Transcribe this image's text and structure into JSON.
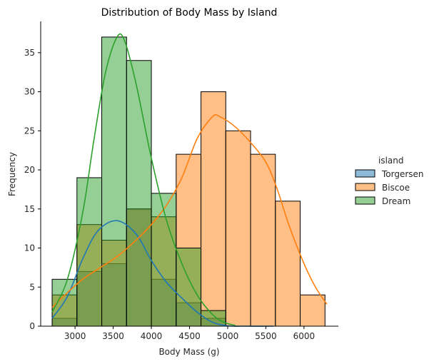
{
  "chart_data": {
    "type": "histogram",
    "title": "Distribution of Body Mass by Island",
    "xlabel": "Body Mass (g)",
    "ylabel": "Frequency",
    "xlim": [
      2550,
      6450
    ],
    "ylim": [
      0,
      39
    ],
    "x_ticks": [
      3000,
      3500,
      4000,
      4500,
      5000,
      5500,
      6000
    ],
    "y_ticks": [
      0,
      5,
      10,
      15,
      20,
      25,
      30,
      35
    ],
    "bin_edges": [
      2700,
      3025,
      3350,
      3675,
      4000,
      4325,
      4650,
      4975,
      5300,
      5625,
      5950,
      6275
    ],
    "legend": {
      "title": "island",
      "position": "right"
    },
    "series": [
      {
        "name": "Torgersen",
        "color": "#1f77b4",
        "counts": [
          1,
          7,
          8,
          15,
          6,
          3,
          1,
          0,
          0,
          0,
          0
        ],
        "kde": [
          [
            2700,
            1.0
          ],
          [
            2900,
            3.8
          ],
          [
            3100,
            8.6
          ],
          [
            3300,
            12.2
          ],
          [
            3550,
            13.5
          ],
          [
            3800,
            11.8
          ],
          [
            4000,
            8.4
          ],
          [
            4200,
            5.6
          ],
          [
            4400,
            3.6
          ],
          [
            4600,
            1.8
          ],
          [
            4800,
            0.5
          ],
          [
            5000,
            0.05
          ],
          [
            5200,
            0
          ],
          [
            5600,
            0
          ]
        ]
      },
      {
        "name": "Biscoe",
        "color": "#ff7f0e",
        "counts": [
          4,
          13,
          11,
          15,
          14,
          22,
          30,
          25,
          22,
          16,
          4
        ],
        "kde": [
          [
            2700,
            2.4
          ],
          [
            2900,
            4.3
          ],
          [
            3100,
            6.0
          ],
          [
            3300,
            7.3
          ],
          [
            3550,
            8.9
          ],
          [
            3800,
            11.0
          ],
          [
            4000,
            13.0
          ],
          [
            4200,
            15.5
          ],
          [
            4400,
            19.0
          ],
          [
            4600,
            24.0
          ],
          [
            4800,
            26.8
          ],
          [
            4900,
            26.8
          ],
          [
            5100,
            25.5
          ],
          [
            5300,
            23.5
          ],
          [
            5500,
            21.0
          ],
          [
            5650,
            17.5
          ],
          [
            5800,
            13.0
          ],
          [
            6000,
            8.0
          ],
          [
            6150,
            5.0
          ],
          [
            6300,
            2.8
          ]
        ]
      },
      {
        "name": "Dream",
        "color": "#2ca02c",
        "counts": [
          6,
          19,
          37,
          34,
          17,
          10,
          2,
          0,
          0,
          0,
          0
        ],
        "kde": [
          [
            2700,
            1.8
          ],
          [
            2900,
            6.0
          ],
          [
            3100,
            14.5
          ],
          [
            3250,
            24.0
          ],
          [
            3400,
            32.5
          ],
          [
            3550,
            37.0
          ],
          [
            3650,
            36.5
          ],
          [
            3800,
            31.0
          ],
          [
            4000,
            21.5
          ],
          [
            4200,
            13.5
          ],
          [
            4400,
            8.0
          ],
          [
            4600,
            4.0
          ],
          [
            4800,
            1.5
          ],
          [
            4950,
            0.5
          ],
          [
            5100,
            0.1
          ]
        ]
      }
    ]
  }
}
